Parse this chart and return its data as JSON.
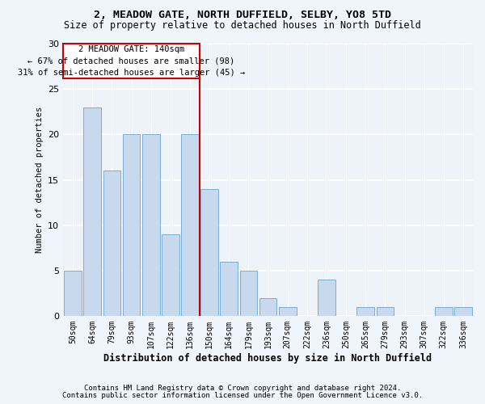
{
  "title1": "2, MEADOW GATE, NORTH DUFFIELD, SELBY, YO8 5TD",
  "title2": "Size of property relative to detached houses in North Duffield",
  "xlabel": "Distribution of detached houses by size in North Duffield",
  "ylabel": "Number of detached properties",
  "footnote1": "Contains HM Land Registry data © Crown copyright and database right 2024.",
  "footnote2": "Contains public sector information licensed under the Open Government Licence v3.0.",
  "bar_labels": [
    "50sqm",
    "64sqm",
    "79sqm",
    "93sqm",
    "107sqm",
    "122sqm",
    "136sqm",
    "150sqm",
    "164sqm",
    "179sqm",
    "193sqm",
    "207sqm",
    "222sqm",
    "236sqm",
    "250sqm",
    "265sqm",
    "279sqm",
    "293sqm",
    "307sqm",
    "322sqm",
    "336sqm"
  ],
  "bar_values": [
    5,
    23,
    16,
    20,
    20,
    9,
    20,
    14,
    6,
    5,
    2,
    1,
    0,
    4,
    0,
    1,
    1,
    0,
    0,
    1,
    1
  ],
  "bar_color": "#c9d9ed",
  "bar_edge_color": "#7bafd4",
  "bg_color": "#eef2f9",
  "grid_color": "#ffffff",
  "annotation_line1": "2 MEADOW GATE: 140sqm",
  "annotation_line2": "← 67% of detached houses are smaller (98)",
  "annotation_line3": "31% of semi-detached houses are larger (45) →",
  "redline_color": "#cc0000",
  "annotation_box_color": "#ffffff",
  "annotation_box_edge": "#cc0000",
  "ylim": [
    0,
    30
  ],
  "yticks": [
    0,
    5,
    10,
    15,
    20,
    25,
    30
  ],
  "title1_fontsize": 9.5,
  "title2_fontsize": 8.5,
  "xlabel_fontsize": 8.5,
  "ylabel_fontsize": 7.5,
  "tick_fontsize": 7,
  "annotation_fontsize": 7.5,
  "footnote_fontsize": 6.5
}
